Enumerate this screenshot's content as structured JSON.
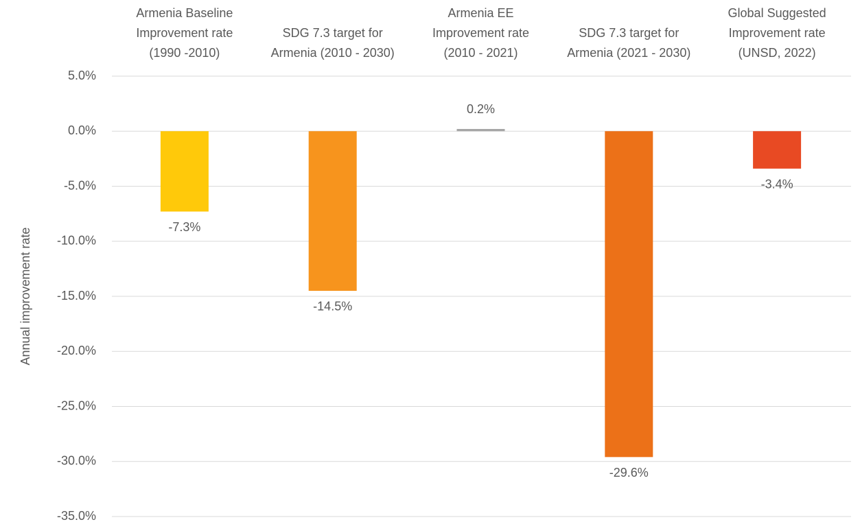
{
  "chart_data": {
    "type": "bar",
    "categories": [
      "Armenia Baseline\nImprovement rate\n(1990 -2010)",
      "SDG 7.3 target for\nArmenia (2010 - 2030)",
      "Armenia EE\nImprovement rate\n(2010 - 2021)",
      "SDG 7.3 target for\nArmenia (2021 - 2030)",
      "Global Suggested\nImprovement rate\n(UNSD, 2022)"
    ],
    "values": [
      -7.3,
      -14.5,
      0.2,
      -29.6,
      -3.4
    ],
    "value_labels": [
      "-7.3%",
      "-14.5%",
      "0.2%",
      "-29.6%",
      "-3.4%"
    ],
    "colors": [
      "#FFC90A",
      "#F7941D",
      "#A5A5A5",
      "#EC7118",
      "#E84A23"
    ],
    "y_label": "Annual improvement rate",
    "ylim": [
      -35,
      5
    ],
    "yticks": [
      {
        "value": -35,
        "label": "-35.0%"
      },
      {
        "value": -30,
        "label": "-30.0%"
      },
      {
        "value": -25,
        "label": "-25.0%"
      },
      {
        "value": -20,
        "label": "-20.0%"
      },
      {
        "value": -15,
        "label": "-15.0%"
      },
      {
        "value": -10,
        "label": "-10.0%"
      },
      {
        "value": -5,
        "label": "-5.0%"
      },
      {
        "value": 0,
        "label": "0.0%"
      },
      {
        "value": 5,
        "label": "5.0%"
      }
    ],
    "grid": true
  }
}
